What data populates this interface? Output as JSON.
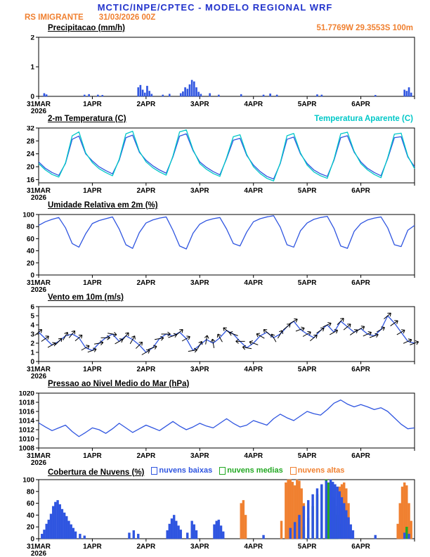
{
  "header": {
    "title": "MCTIC/INPE/CPTEC - MODELO REGIONAL WRF",
    "station": "RS IMIGRANTE",
    "run": "31/03/2026 00Z",
    "location": "51.7769W 29.3553S 100m"
  },
  "colors": {
    "title_blue": "#2233cc",
    "accent_orange": "#f08030",
    "line_blue": "#2f55e0",
    "cyan": "#00c8c8",
    "green": "#22a822",
    "black": "#000000"
  },
  "x_axis": {
    "labels": [
      "31MAR",
      "1APR",
      "2APR",
      "3APR",
      "4APR",
      "5APR",
      "6APR"
    ],
    "year": "2026",
    "hours_total": 168
  },
  "chart_data": [
    {
      "id": "precip",
      "type": "bar",
      "title": "Precipitacao (mm/h)",
      "ylim": [
        0,
        2
      ],
      "yticks": [
        0,
        1,
        2
      ],
      "bar_color": "#2f55e0",
      "bars": [
        [
          2,
          0.1
        ],
        [
          3,
          0.06
        ],
        [
          20,
          0.05
        ],
        [
          22,
          0.07
        ],
        [
          26,
          0.05
        ],
        [
          28,
          0.04
        ],
        [
          44,
          0.3
        ],
        [
          45,
          0.38
        ],
        [
          46,
          0.22
        ],
        [
          47,
          0.12
        ],
        [
          48,
          0.35
        ],
        [
          49,
          0.18
        ],
        [
          50,
          0.08
        ],
        [
          55,
          0.05
        ],
        [
          58,
          0.08
        ],
        [
          63,
          0.1
        ],
        [
          64,
          0.16
        ],
        [
          65,
          0.3
        ],
        [
          66,
          0.25
        ],
        [
          67,
          0.4
        ],
        [
          68,
          0.55
        ],
        [
          69,
          0.5
        ],
        [
          70,
          0.3
        ],
        [
          71,
          0.15
        ],
        [
          72,
          0.08
        ],
        [
          76,
          0.1
        ],
        [
          80,
          0.05
        ],
        [
          90,
          0.07
        ],
        [
          100,
          0.05
        ],
        [
          103,
          0.09
        ],
        [
          106,
          0.05
        ],
        [
          124,
          0.06
        ],
        [
          126,
          0.05
        ],
        [
          150,
          0.04
        ],
        [
          163,
          0.22
        ],
        [
          164,
          0.18
        ],
        [
          165,
          0.3
        ],
        [
          166,
          0.12
        ]
      ]
    },
    {
      "id": "temp",
      "type": "line",
      "title": "2-m Temperatura (C)",
      "legend": "Temperatura Aparente (C)",
      "ylim": [
        15,
        32
      ],
      "yticks": [
        16,
        20,
        24,
        28,
        32
      ],
      "step_hours": 3,
      "series": [
        {
          "name": "2-m Temperatura",
          "color": "#2f55e0",
          "values": [
            21.5,
            19.5,
            18.2,
            17.3,
            21.0,
            28.5,
            29.5,
            24.0,
            21.8,
            20.0,
            18.8,
            17.8,
            22.0,
            29.0,
            29.8,
            24.5,
            22.0,
            20.3,
            19.0,
            18.0,
            23.0,
            29.5,
            30.2,
            25.0,
            21.5,
            19.8,
            18.5,
            17.5,
            22.5,
            28.2,
            28.8,
            23.5,
            20.5,
            18.5,
            17.0,
            16.2,
            21.0,
            28.5,
            29.2,
            24.0,
            21.0,
            19.0,
            17.8,
            17.0,
            22.0,
            29.0,
            29.6,
            24.5,
            21.5,
            19.5,
            18.2,
            17.2,
            22.5,
            29.0,
            29.3,
            23.0,
            20.0
          ]
        },
        {
          "name": "Temperatura Aparente",
          "color": "#00c8c8",
          "values": [
            21.0,
            19.0,
            17.6,
            16.8,
            21.2,
            29.6,
            30.8,
            24.3,
            21.3,
            19.4,
            18.2,
            17.2,
            22.3,
            30.2,
            31.0,
            24.8,
            21.5,
            19.7,
            18.4,
            17.4,
            23.3,
            30.8,
            31.4,
            25.3,
            21.0,
            19.2,
            17.9,
            17.0,
            22.8,
            29.3,
            29.9,
            23.8,
            20.0,
            17.9,
            16.4,
            15.6,
            21.2,
            29.6,
            30.3,
            24.3,
            20.5,
            18.4,
            17.2,
            16.4,
            22.3,
            30.2,
            30.7,
            24.8,
            21.0,
            19.0,
            17.6,
            16.6,
            22.8,
            30.1,
            30.4,
            23.3,
            19.4
          ]
        }
      ]
    },
    {
      "id": "umid",
      "type": "line",
      "title": "Umidade Relativa em 2m (%)",
      "ylim": [
        0,
        100
      ],
      "yticks": [
        0,
        20,
        40,
        60,
        80,
        100
      ],
      "step_hours": 3,
      "series": [
        {
          "name": "Umidade Relativa",
          "color": "#2f55e0",
          "values": [
            82,
            88,
            92,
            95,
            78,
            52,
            46,
            68,
            85,
            90,
            93,
            96,
            76,
            50,
            44,
            70,
            86,
            91,
            94,
            96,
            74,
            48,
            43,
            69,
            84,
            90,
            93,
            95,
            76,
            52,
            48,
            71,
            88,
            93,
            96,
            98,
            79,
            50,
            46,
            73,
            86,
            92,
            95,
            97,
            77,
            48,
            44,
            72,
            85,
            91,
            94,
            96,
            78,
            50,
            47,
            74,
            82
          ]
        }
      ]
    },
    {
      "id": "vento",
      "type": "wind",
      "title": "Vento em 10m (m/s)",
      "ylim": [
        0,
        6
      ],
      "yticks": [
        0,
        1,
        2,
        3,
        4,
        5,
        6
      ],
      "step_hours": 3,
      "line_color": "#2f55e0",
      "barb_color": "#000000",
      "speed": [
        3.2,
        2.5,
        1.8,
        2.2,
        2.8,
        3.0,
        2.6,
        1.5,
        1.2,
        2.0,
        2.6,
        3.0,
        2.2,
        2.8,
        2.4,
        1.8,
        1.0,
        1.5,
        2.5,
        3.0,
        2.8,
        3.2,
        2.5,
        1.2,
        1.8,
        2.4,
        2.0,
        2.6,
        3.4,
        3.0,
        2.2,
        1.5,
        2.0,
        2.8,
        3.2,
        2.6,
        3.0,
        3.8,
        4.4,
        3.5,
        3.0,
        2.6,
        3.4,
        4.0,
        3.2,
        4.4,
        3.8,
        3.2,
        3.6,
        3.0,
        2.8,
        3.5,
        5.0,
        4.2,
        3.2,
        2.2,
        2.0
      ],
      "direction_deg": [
        40,
        35,
        30,
        45,
        60,
        50,
        40,
        30,
        20,
        10,
        0,
        -10,
        30,
        50,
        60,
        45,
        30,
        20,
        10,
        0,
        20,
        40,
        30,
        10,
        60,
        80,
        100,
        120,
        140,
        160,
        180,
        170,
        160,
        150,
        140,
        120,
        60,
        40,
        30,
        20,
        30,
        40,
        35,
        25,
        30,
        45,
        40,
        35,
        30,
        25,
        20,
        30,
        40,
        35,
        30,
        25,
        20
      ]
    },
    {
      "id": "press",
      "type": "line",
      "title": "Pressao ao Nivel Medio do Mar (hPa)",
      "ylim": [
        1008,
        1020
      ],
      "yticks": [
        1008,
        1010,
        1012,
        1014,
        1016,
        1018,
        1020
      ],
      "step_hours": 3,
      "series": [
        {
          "name": "Pressao",
          "color": "#2f55e0",
          "values": [
            1013.5,
            1012.6,
            1011.8,
            1012.4,
            1013.0,
            1011.6,
            1010.5,
            1011.4,
            1012.4,
            1012.0,
            1011.2,
            1012.2,
            1013.4,
            1012.4,
            1011.4,
            1012.2,
            1013.0,
            1012.4,
            1011.8,
            1012.8,
            1013.8,
            1012.8,
            1012.0,
            1012.6,
            1013.4,
            1012.8,
            1012.4,
            1013.4,
            1014.4,
            1013.4,
            1012.6,
            1013.0,
            1014.0,
            1013.5,
            1013.0,
            1014.4,
            1015.4,
            1014.6,
            1014.0,
            1015.0,
            1016.0,
            1015.5,
            1015.2,
            1016.4,
            1017.8,
            1018.5,
            1017.6,
            1017.0,
            1017.5,
            1017.0,
            1016.4,
            1016.8,
            1016.0,
            1014.6,
            1013.2,
            1012.2,
            1012.4
          ]
        }
      ]
    },
    {
      "id": "nuvens",
      "type": "bar-multi",
      "title": "Cobertura de Nuvens (%)",
      "ylim": [
        0,
        100
      ],
      "yticks": [
        0,
        20,
        40,
        60,
        80,
        100
      ],
      "series": [
        {
          "name": "nuvens baixas",
          "color": "#2f55e0",
          "bars": [
            [
              1,
              8
            ],
            [
              2,
              15
            ],
            [
              3,
              25
            ],
            [
              4,
              32
            ],
            [
              5,
              42
            ],
            [
              6,
              55
            ],
            [
              7,
              62
            ],
            [
              8,
              65
            ],
            [
              9,
              58
            ],
            [
              10,
              50
            ],
            [
              11,
              44
            ],
            [
              12,
              38
            ],
            [
              13,
              30
            ],
            [
              14,
              24
            ],
            [
              15,
              18
            ],
            [
              16,
              12
            ],
            [
              18,
              8
            ],
            [
              20,
              5
            ],
            [
              40,
              10
            ],
            [
              42,
              14
            ],
            [
              44,
              8
            ],
            [
              57,
              14
            ],
            [
              58,
              25
            ],
            [
              59,
              34
            ],
            [
              60,
              40
            ],
            [
              61,
              30
            ],
            [
              62,
              22
            ],
            [
              63,
              15
            ],
            [
              66,
              10
            ],
            [
              68,
              30
            ],
            [
              69,
              24
            ],
            [
              70,
              14
            ],
            [
              78,
              24
            ],
            [
              79,
              30
            ],
            [
              80,
              32
            ],
            [
              81,
              22
            ],
            [
              82,
              12
            ],
            [
              100,
              6
            ],
            [
              112,
              18
            ],
            [
              114,
              28
            ],
            [
              116,
              40
            ],
            [
              118,
              55
            ],
            [
              120,
              65
            ],
            [
              122,
              75
            ],
            [
              124,
              85
            ],
            [
              126,
              92
            ],
            [
              128,
              98
            ],
            [
              130,
              100
            ],
            [
              131,
              96
            ],
            [
              132,
              92
            ],
            [
              133,
              88
            ],
            [
              134,
              80
            ],
            [
              135,
              70
            ],
            [
              136,
              60
            ],
            [
              137,
              48
            ],
            [
              138,
              36
            ],
            [
              139,
              24
            ],
            [
              140,
              14
            ],
            [
              150,
              6
            ],
            [
              163,
              10
            ],
            [
              165,
              8
            ]
          ]
        },
        {
          "name": "nuvens medias",
          "color": "#22a822",
          "bars": [
            [
              118,
              20
            ],
            [
              120,
              35
            ],
            [
              122,
              55
            ],
            [
              124,
              75
            ],
            [
              126,
              90
            ],
            [
              128,
              100
            ],
            [
              129,
              95
            ],
            [
              130,
              85
            ],
            [
              131,
              70
            ],
            [
              132,
              55
            ],
            [
              133,
              40
            ],
            [
              134,
              25
            ],
            [
              164,
              20
            ]
          ]
        },
        {
          "name": "nuvens altas",
          "color": "#f08030",
          "bars": [
            [
              90,
              60
            ],
            [
              91,
              65
            ],
            [
              92,
              40
            ],
            [
              108,
              30
            ],
            [
              110,
              95
            ],
            [
              111,
              100
            ],
            [
              112,
              100
            ],
            [
              113,
              96
            ],
            [
              114,
              90
            ],
            [
              115,
              100
            ],
            [
              116,
              98
            ],
            [
              117,
              85
            ],
            [
              118,
              60
            ],
            [
              134,
              88
            ],
            [
              135,
              92
            ],
            [
              136,
              95
            ],
            [
              137,
              85
            ],
            [
              138,
              60
            ],
            [
              160,
              25
            ],
            [
              161,
              60
            ],
            [
              162,
              88
            ],
            [
              163,
              95
            ],
            [
              164,
              90
            ],
            [
              165,
              60
            ],
            [
              166,
              30
            ]
          ]
        }
      ]
    }
  ]
}
